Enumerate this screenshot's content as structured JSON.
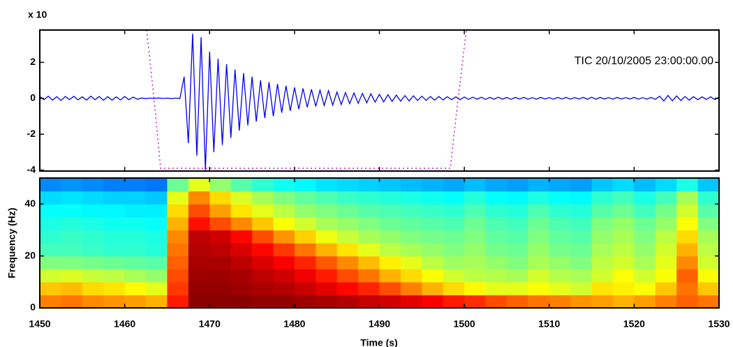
{
  "chart_data": [
    {
      "type": "line",
      "y_scale_label": "x 10",
      "annotation": "TIC 20/10/2005  23:00:00.00",
      "color": "#0000ee",
      "xlim": [
        1450,
        1530
      ],
      "xticks": [
        1450,
        1460,
        1470,
        1480,
        1490,
        1500,
        1510,
        1520,
        1530
      ],
      "ylim": [
        -4.05,
        3.8
      ],
      "yticks": [
        -4,
        -2,
        0,
        2
      ],
      "x": [
        1450,
        1450.5,
        1451,
        1451.5,
        1452,
        1452.5,
        1453,
        1453.5,
        1454,
        1454.5,
        1455,
        1455.5,
        1456,
        1456.5,
        1457,
        1457.5,
        1458,
        1458.5,
        1459,
        1459.5,
        1460,
        1460.5,
        1461,
        1461.5,
        1462,
        1462.5,
        1463,
        1463.5,
        1464,
        1464.5,
        1465,
        1465.5,
        1466,
        1466.5,
        1467,
        1467.5,
        1468,
        1468.5,
        1469,
        1469.5,
        1470,
        1470.5,
        1471,
        1471.5,
        1472,
        1472.5,
        1473,
        1473.5,
        1474,
        1474.5,
        1475,
        1475.5,
        1476,
        1476.5,
        1477,
        1477.5,
        1478,
        1478.5,
        1479,
        1479.5,
        1480,
        1480.5,
        1481,
        1481.5,
        1482,
        1482.5,
        1483,
        1483.5,
        1484,
        1484.5,
        1485,
        1485.5,
        1486,
        1486.5,
        1487,
        1487.5,
        1488,
        1488.5,
        1489,
        1489.5,
        1490,
        1490.5,
        1491,
        1491.5,
        1492,
        1492.5,
        1493,
        1493.5,
        1494,
        1494.5,
        1495,
        1495.5,
        1496,
        1496.5,
        1497,
        1497.5,
        1498,
        1498.5,
        1499,
        1499.5,
        1500,
        1500.5,
        1501,
        1501.5,
        1502,
        1502.5,
        1503,
        1503.5,
        1504,
        1504.5,
        1505,
        1505.5,
        1506,
        1506.5,
        1507,
        1507.5,
        1508,
        1508.5,
        1509,
        1509.5,
        1510,
        1510.5,
        1511,
        1511.5,
        1512,
        1512.5,
        1513,
        1513.5,
        1514,
        1514.5,
        1515,
        1515.5,
        1516,
        1516.5,
        1517,
        1517.5,
        1518,
        1518.5,
        1519,
        1519.5,
        1520,
        1520.5,
        1521,
        1521.5,
        1522,
        1522.5,
        1523,
        1523.5,
        1524,
        1524.5,
        1525,
        1525.5,
        1526,
        1526.5,
        1527,
        1527.5,
        1528,
        1528.5,
        1529,
        1529.5,
        1530
      ],
      "values": [
        0.1,
        -0.08,
        0.12,
        -0.1,
        0.09,
        -0.12,
        0.1,
        -0.07,
        0.11,
        -0.09,
        0.08,
        -0.1,
        0.12,
        -0.08,
        0.1,
        -0.11,
        0.09,
        -0.1,
        0.08,
        -0.09,
        0.1,
        -0.08,
        0.07,
        -0.06,
        0.02,
        -0.02,
        0.01,
        -0.01,
        0.02,
        -0.01,
        0.01,
        -0.02,
        0.01,
        -0.01,
        1.2,
        -2.5,
        3.6,
        -3.2,
        3.4,
        -4.0,
        2.6,
        -3.0,
        2.2,
        -2.6,
        1.9,
        -2.2,
        1.6,
        -1.8,
        1.4,
        -1.5,
        1.2,
        -1.3,
        1.0,
        -1.1,
        0.9,
        -1.0,
        0.8,
        -0.8,
        0.7,
        -0.7,
        0.6,
        -0.6,
        0.55,
        -0.5,
        0.5,
        -0.45,
        0.45,
        -0.4,
        0.42,
        -0.38,
        0.35,
        -0.35,
        0.32,
        -0.3,
        0.3,
        -0.28,
        0.27,
        -0.25,
        0.25,
        -0.22,
        0.22,
        -0.2,
        0.2,
        -0.18,
        0.18,
        -0.16,
        0.15,
        -0.15,
        0.14,
        -0.12,
        0.12,
        -0.12,
        0.1,
        -0.1,
        0.1,
        -0.09,
        0.09,
        -0.08,
        0.08,
        -0.08,
        0.07,
        -0.06,
        0.06,
        -0.05,
        0.06,
        -0.06,
        0.05,
        -0.05,
        0.06,
        -0.05,
        0.05,
        -0.06,
        0.05,
        -0.04,
        0.05,
        -0.05,
        0.04,
        -0.05,
        0.05,
        -0.04,
        0.04,
        -0.05,
        0.05,
        -0.04,
        0.05,
        -0.05,
        0.04,
        -0.04,
        0.05,
        -0.05,
        0.06,
        -0.05,
        0.05,
        -0.04,
        0.04,
        -0.05,
        0.05,
        -0.04,
        0.04,
        -0.04,
        0.05,
        -0.05,
        0.04,
        -0.05,
        0.05,
        -0.06,
        0.12,
        -0.15,
        0.16,
        -0.14,
        0.13,
        -0.12,
        0.1,
        -0.1,
        0.09,
        -0.08,
        0.08,
        -0.07,
        0.08,
        -0.07,
        0.06
      ]
    },
    {
      "type": "heatmap",
      "x_label": "Time (s)",
      "y_label": "Frequency (Hz)",
      "colormap": "jet",
      "clim": [
        0,
        10
      ],
      "xlim": [
        1450,
        1530
      ],
      "xticks": [
        1450,
        1460,
        1470,
        1480,
        1490,
        1500,
        1510,
        1520,
        1530
      ],
      "ylim": [
        0,
        50
      ],
      "yticks": [
        0,
        20,
        40
      ],
      "xbins": [
        1450,
        1452.5,
        1455,
        1457.5,
        1460,
        1462.5,
        1465,
        1467.5,
        1470,
        1472.5,
        1475,
        1477.5,
        1480,
        1482.5,
        1485,
        1487.5,
        1490,
        1492.5,
        1495,
        1497.5,
        1500,
        1502.5,
        1505,
        1507.5,
        1510,
        1512.5,
        1515,
        1517.5,
        1520,
        1522.5,
        1525,
        1527.5,
        1530
      ],
      "ybins": [
        0,
        5,
        10,
        15,
        20,
        25,
        30,
        35,
        40,
        45,
        50
      ],
      "values": [
        [
          7.5,
          7.6,
          7.4,
          7.3,
          7.2,
          7.0,
          8.5,
          9.9,
          9.9,
          9.9,
          9.8,
          9.8,
          9.7,
          9.6,
          9.5,
          9.3,
          9.2,
          9.0,
          8.8,
          8.5,
          8.3,
          8.0,
          7.8,
          7.6,
          7.5,
          7.3,
          7.2,
          7.0,
          7.2,
          7.5,
          7.8,
          7.6
        ],
        [
          6.8,
          6.9,
          6.6,
          6.5,
          6.3,
          6.0,
          8.2,
          9.8,
          9.8,
          9.7,
          9.6,
          9.5,
          9.3,
          9.0,
          8.7,
          8.4,
          8.0,
          7.5,
          7.0,
          6.6,
          6.3,
          6.0,
          6.0,
          6.2,
          6.0,
          5.8,
          6.5,
          6.4,
          6.2,
          6.8,
          7.6,
          6.8
        ],
        [
          5.8,
          5.9,
          5.7,
          5.6,
          5.4,
          5.2,
          8.0,
          9.7,
          9.7,
          9.6,
          9.4,
          9.2,
          8.9,
          8.5,
          8.0,
          7.6,
          7.0,
          6.6,
          6.2,
          5.8,
          5.6,
          5.5,
          5.4,
          5.8,
          5.5,
          5.4,
          5.8,
          6.2,
          5.8,
          6.2,
          7.8,
          6.2
        ],
        [
          5.0,
          5.0,
          4.9,
          4.8,
          4.7,
          4.6,
          7.8,
          9.6,
          9.6,
          9.4,
          9.1,
          8.8,
          8.4,
          7.9,
          7.4,
          6.9,
          6.4,
          6.0,
          5.6,
          5.3,
          5.4,
          5.2,
          5.0,
          5.4,
          5.2,
          5.0,
          5.6,
          5.8,
          5.4,
          6.0,
          7.4,
          5.8
        ],
        [
          4.4,
          4.4,
          4.3,
          4.2,
          4.2,
          4.1,
          7.6,
          9.5,
          9.4,
          9.1,
          8.7,
          8.2,
          7.6,
          7.0,
          6.5,
          6.0,
          5.6,
          5.4,
          5.2,
          5.0,
          5.2,
          4.9,
          4.8,
          5.2,
          4.9,
          4.8,
          5.4,
          5.6,
          5.2,
          5.8,
          7.0,
          5.6
        ],
        [
          4.2,
          4.3,
          4.2,
          4.1,
          4.1,
          4.0,
          7.4,
          9.4,
          9.2,
          8.7,
          8.0,
          7.3,
          6.7,
          6.1,
          5.7,
          5.4,
          5.2,
          5.0,
          4.9,
          4.8,
          5.0,
          4.7,
          4.6,
          5.0,
          4.7,
          4.6,
          5.2,
          5.4,
          5.0,
          5.6,
          6.6,
          5.4
        ],
        [
          4.0,
          4.1,
          4.0,
          3.9,
          3.9,
          3.8,
          7.0,
          8.6,
          8.0,
          7.4,
          6.8,
          6.2,
          5.8,
          5.4,
          5.2,
          5.0,
          4.8,
          4.7,
          4.6,
          4.5,
          4.8,
          4.5,
          4.4,
          4.8,
          4.5,
          4.4,
          5.0,
          5.2,
          4.8,
          5.2,
          6.2,
          5.0
        ],
        [
          3.8,
          3.8,
          3.7,
          3.7,
          3.6,
          3.6,
          6.6,
          8.0,
          7.2,
          6.5,
          6.0,
          5.6,
          5.2,
          5.0,
          4.8,
          4.6,
          4.5,
          4.4,
          4.3,
          4.2,
          4.5,
          4.2,
          4.1,
          4.5,
          4.2,
          4.1,
          4.6,
          4.8,
          4.4,
          4.9,
          5.8,
          4.6
        ],
        [
          3.4,
          3.5,
          3.4,
          3.3,
          3.3,
          3.2,
          6.0,
          7.4,
          6.6,
          5.9,
          5.4,
          5.0,
          4.7,
          4.5,
          4.3,
          4.2,
          4.1,
          4.0,
          3.9,
          3.8,
          4.1,
          3.8,
          3.7,
          4.0,
          3.8,
          3.7,
          4.2,
          4.4,
          4.0,
          4.4,
          5.4,
          4.2
        ],
        [
          2.6,
          2.7,
          2.6,
          2.5,
          2.5,
          2.4,
          4.8,
          6.0,
          5.2,
          4.6,
          4.2,
          3.9,
          3.7,
          3.5,
          3.4,
          3.3,
          3.2,
          3.1,
          3.0,
          2.9,
          3.1,
          2.9,
          2.8,
          3.0,
          2.9,
          2.8,
          3.2,
          3.4,
          3.1,
          3.4,
          4.0,
          3.2
        ]
      ]
    }
  ]
}
